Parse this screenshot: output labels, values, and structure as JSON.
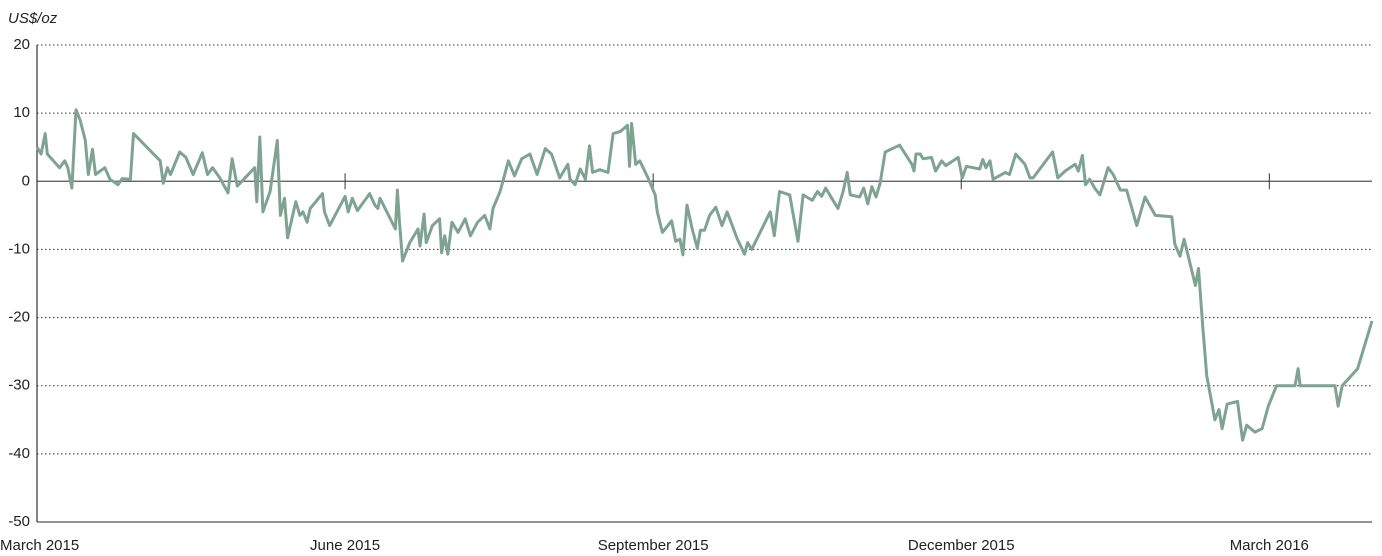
{
  "chart_data": {
    "type": "line",
    "y_label": "US$/oz",
    "color": "#7fa393",
    "xlim": [
      0,
      13
    ],
    "xticks": [
      {
        "value": 0,
        "label": "March 2015"
      },
      {
        "value": 3,
        "label": "June 2015"
      },
      {
        "value": 6,
        "label": "September 2015"
      },
      {
        "value": 9,
        "label": "December 2015"
      },
      {
        "value": 12,
        "label": "March 2016"
      }
    ],
    "ylim": [
      -50,
      20
    ],
    "yticks": [
      20,
      10,
      0,
      -10,
      -20,
      -30,
      -40,
      -50
    ],
    "grid": true,
    "x": [
      0,
      0.04,
      0.08,
      0.1,
      0.22,
      0.27,
      0.3,
      0.34,
      0.38,
      0.42,
      0.47,
      0.5,
      0.54,
      0.57,
      0.66,
      0.71,
      0.79,
      0.83,
      0.91,
      0.94,
      1.2,
      1.23,
      1.27,
      1.3,
      1.39,
      1.45,
      1.52,
      1.61,
      1.66,
      1.71,
      1.78,
      1.86,
      1.9,
      1.95,
      2.12,
      2.14,
      2.17,
      2.2,
      2.27,
      2.34,
      2.37,
      2.41,
      2.44,
      2.52,
      2.56,
      2.59,
      2.63,
      2.66,
      2.78,
      2.8,
      2.85,
      3.0,
      3.03,
      3.07,
      3.12,
      3.24,
      3.29,
      3.32,
      3.34,
      3.44,
      3.49,
      3.51,
      3.53,
      3.56,
      3.63,
      3.71,
      3.73,
      3.77,
      3.79,
      3.85,
      3.92,
      3.94,
      3.97,
      4.0,
      4.04,
      4.1,
      4.17,
      4.22,
      4.29,
      4.36,
      4.41,
      4.44,
      4.51,
      4.59,
      4.65,
      4.72,
      4.8,
      4.87,
      4.95,
      5.01,
      5.09,
      5.17,
      5.19,
      5.24,
      5.29,
      5.34,
      5.38,
      5.41,
      5.48,
      5.56,
      5.61,
      5.68,
      5.75,
      5.77,
      5.79,
      5.83,
      5.87,
      5.95,
      6.02,
      6.04,
      6.09,
      6.18,
      6.22,
      6.26,
      6.29,
      6.33,
      6.38,
      6.43,
      6.46,
      6.5,
      6.55,
      6.61,
      6.67,
      6.72,
      6.82,
      6.89,
      6.92,
      6.96,
      7.14,
      7.18,
      7.23,
      7.33,
      7.41,
      7.46,
      7.55,
      7.6,
      7.64,
      7.68,
      7.74,
      7.8,
      7.85,
      7.89,
      7.92,
      8.01,
      8.05,
      8.09,
      8.13,
      8.17,
      8.21,
      8.26,
      8.4,
      8.52,
      8.54,
      8.56,
      8.6,
      8.63,
      8.71,
      8.75,
      8.81,
      8.85,
      8.97,
      9.01,
      9.05,
      9.18,
      9.21,
      9.24,
      9.28,
      9.31,
      9.43,
      9.47,
      9.53,
      9.62,
      9.67,
      9.7,
      9.89,
      9.94,
      10.01,
      10.11,
      10.14,
      10.18,
      10.21,
      10.25,
      10.3,
      10.35,
      10.43,
      10.48,
      10.55,
      10.61,
      10.71,
      10.79,
      10.89,
      11.05,
      11.08,
      11.13,
      11.17,
      11.28,
      11.31,
      11.35,
      11.39,
      11.47,
      11.51,
      11.54,
      11.59,
      11.69,
      11.74,
      11.78,
      11.86,
      11.93,
      11.99,
      12.03,
      12.07,
      12.25,
      12.28,
      12.3,
      12.64,
      12.67,
      12.71,
      12.86,
      13.0
    ],
    "values": [
      5,
      4,
      7,
      4,
      2,
      3,
      2,
      -1,
      10.5,
      9,
      6,
      1,
      4.7,
      1,
      2,
      0.3,
      -0.5,
      0.4,
      0.3,
      7,
      3,
      -0.3,
      2,
      1,
      4.3,
      3.5,
      1,
      4.2,
      1,
      2,
      0.5,
      -1.7,
      3.3,
      -0.7,
      2,
      -3,
      6.5,
      -4.5,
      -1.5,
      6,
      -5,
      -2.5,
      -8.3,
      -3,
      -5,
      -4.5,
      -6,
      -4,
      -1.8,
      -4.5,
      -6.5,
      -2.2,
      -4.5,
      -2.5,
      -4.3,
      -1.8,
      -3.5,
      -4,
      -2.5,
      -5.5,
      -7,
      -1.3,
      -6,
      -11.7,
      -9,
      -7,
      -9.5,
      -4.8,
      -9,
      -6.5,
      -5.5,
      -10.5,
      -8,
      -10.7,
      -6,
      -7.5,
      -5.5,
      -8,
      -6,
      -5,
      -7,
      -4,
      -1.5,
      3,
      0.8,
      3.3,
      4,
      1,
      4.8,
      4,
      0.5,
      2.5,
      0.3,
      -0.5,
      1.8,
      0.3,
      5.2,
      1.3,
      1.7,
      1.3,
      7,
      7.3,
      8.2,
      2.2,
      8.5,
      2.5,
      3,
      0.5,
      -2,
      -4.5,
      -7.5,
      -5.8,
      -8.8,
      -8.5,
      -10.8,
      -3.5,
      -7,
      -9.8,
      -7.2,
      -7.2,
      -5,
      -3.8,
      -6.5,
      -4.5,
      -8.5,
      -10.7,
      -9,
      -10,
      -4.5,
      -8,
      -1.5,
      -2,
      -8.8,
      -2,
      -2.8,
      -1.5,
      -2.2,
      -1,
      -2.5,
      -4,
      -1.5,
      1.3,
      -2,
      -2.3,
      -1,
      -3.3,
      -0.8,
      -2.3,
      -0.3,
      4.3,
      5.3,
      2.5,
      1.5,
      4,
      4,
      3.3,
      3.5,
      1.5,
      3,
      2.3,
      3.5,
      0.5,
      2.2,
      1.8,
      3.2,
      2,
      3,
      0.3,
      1.3,
      1,
      4,
      2.5,
      0.5,
      0.5,
      4.3,
      0.5,
      1.5,
      2.5,
      1.5,
      3.8,
      -0.5,
      0.3,
      -1,
      -2,
      2,
      1,
      -1.3,
      -1.3,
      -6.5,
      -2.3,
      -5,
      -5.2,
      -9.2,
      -11,
      -8.5,
      -15.3,
      -12.8,
      -21,
      -28.5,
      -35,
      -33.5,
      -36.3,
      -32.7,
      -32.3,
      -38,
      -35.8,
      -36.8,
      -36.3,
      -33,
      -31.5,
      -30,
      -30,
      -27.5,
      -30,
      -30,
      -33,
      -30,
      -27.5,
      -20.5
    ]
  }
}
